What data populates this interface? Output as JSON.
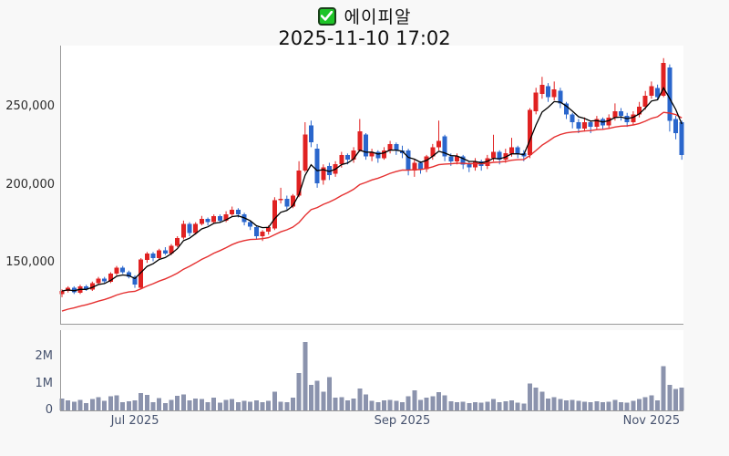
{
  "header": {
    "checkbox_icon": "checkbox-checked",
    "stock_name": "에이피알",
    "timestamp": "2025-11-10 17:02"
  },
  "colors": {
    "background": "#f8f8f8",
    "plot_background": "#ffffff",
    "axis_line": "#9a9a9a",
    "up_candle": "#e02222",
    "down_candle": "#2a66cc",
    "ma_short_line": "#000000",
    "ma_long_line": "#e53030",
    "volume_bar": "#8b93ad",
    "price_label": "#2b2b2b",
    "date_label": "#47536f",
    "checkbox_green": "#1ec427"
  },
  "chart_data": {
    "type": "candlestick_with_volume",
    "title": "에이피알",
    "subtitle": "2025-11-10 17:02",
    "legend_position": "none",
    "grid": false,
    "price_axis": {
      "range": [
        111000,
        289000
      ],
      "ticks": [
        {
          "value": 150000,
          "label": "150,000"
        },
        {
          "value": 200000,
          "label": "200,000"
        },
        {
          "value": 250000,
          "label": "250,000"
        }
      ]
    },
    "volume_axis": {
      "range": [
        0,
        3000000
      ],
      "ticks": [
        {
          "value": 0,
          "label": "0"
        },
        {
          "value": 1000000,
          "label": "1M"
        },
        {
          "value": 2000000,
          "label": "2M"
        }
      ]
    },
    "x_axis": {
      "ticks": [
        {
          "index": 12,
          "label": "Jul 2025"
        },
        {
          "index": 56,
          "label": "Sep 2025"
        },
        {
          "index": 97,
          "label": "Nov 2025"
        }
      ]
    },
    "moving_averages": {
      "short": {
        "type": "ema",
        "alpha": 0.32,
        "seed": null
      },
      "long": {
        "type": "ema",
        "alpha": 0.08,
        "seed": 118000
      }
    },
    "candles_format": [
      "open",
      "high",
      "low",
      "close",
      "volume"
    ],
    "candles": [
      [
        130000,
        133000,
        128000,
        132000,
        450000
      ],
      [
        132000,
        135000,
        131000,
        134000,
        380000
      ],
      [
        134000,
        135000,
        130000,
        131000,
        320000
      ],
      [
        131000,
        136000,
        130000,
        135000,
        400000
      ],
      [
        135000,
        136000,
        132000,
        133000,
        280000
      ],
      [
        133000,
        138000,
        132000,
        137000,
        420000
      ],
      [
        137000,
        141000,
        136000,
        140000,
        500000
      ],
      [
        140000,
        141000,
        137000,
        138000,
        350000
      ],
      [
        138000,
        144000,
        137000,
        143000,
        520000
      ],
      [
        143000,
        148000,
        142000,
        147000,
        560000
      ],
      [
        147000,
        148000,
        143000,
        144000,
        300000
      ],
      [
        144000,
        145000,
        140000,
        141000,
        340000
      ],
      [
        141000,
        142000,
        134000,
        136000,
        380000
      ],
      [
        134000,
        153000,
        133000,
        152000,
        640000
      ],
      [
        152000,
        157000,
        150000,
        156000,
        580000
      ],
      [
        156000,
        157000,
        151000,
        153000,
        300000
      ],
      [
        153000,
        159000,
        152000,
        158000,
        460000
      ],
      [
        158000,
        160000,
        155000,
        156000,
        280000
      ],
      [
        156000,
        162000,
        155000,
        161000,
        400000
      ],
      [
        161000,
        167000,
        160000,
        166000,
        550000
      ],
      [
        166000,
        177000,
        165000,
        175000,
        600000
      ],
      [
        175000,
        176000,
        167000,
        169000,
        380000
      ],
      [
        169000,
        176000,
        168000,
        175000,
        450000
      ],
      [
        175000,
        180000,
        174000,
        178000,
        420000
      ],
      [
        178000,
        179000,
        174000,
        176000,
        310000
      ],
      [
        176000,
        181000,
        175000,
        180000,
        480000
      ],
      [
        180000,
        181000,
        176000,
        177000,
        290000
      ],
      [
        177000,
        183000,
        176000,
        181000,
        400000
      ],
      [
        181000,
        186000,
        180000,
        184000,
        430000
      ],
      [
        184000,
        185000,
        179000,
        181000,
        300000
      ],
      [
        181000,
        182000,
        174000,
        176000,
        350000
      ],
      [
        176000,
        177000,
        171000,
        173000,
        330000
      ],
      [
        173000,
        174000,
        165000,
        167000,
        380000
      ],
      [
        167000,
        171000,
        164000,
        170000,
        300000
      ],
      [
        170000,
        174000,
        168000,
        173000,
        360000
      ],
      [
        172000,
        192000,
        171000,
        190000,
        700000
      ],
      [
        190000,
        198000,
        188000,
        191000,
        320000
      ],
      [
        191000,
        193000,
        184000,
        186000,
        300000
      ],
      [
        186000,
        194000,
        185000,
        193000,
        480000
      ],
      [
        193000,
        215000,
        192000,
        209000,
        1400000
      ],
      [
        209000,
        240000,
        208000,
        232000,
        2550000
      ],
      [
        238000,
        241000,
        224000,
        227000,
        950000
      ],
      [
        223000,
        226000,
        198000,
        201000,
        1100000
      ],
      [
        203000,
        213000,
        200000,
        211000,
        700000
      ],
      [
        212000,
        214000,
        203000,
        206000,
        1250000
      ],
      [
        207000,
        215000,
        205000,
        213000,
        480000
      ],
      [
        213000,
        221000,
        211000,
        219000,
        500000
      ],
      [
        219000,
        220000,
        213000,
        216000,
        380000
      ],
      [
        216000,
        224000,
        214000,
        222000,
        450000
      ],
      [
        222000,
        242000,
        221000,
        234000,
        820000
      ],
      [
        232000,
        233000,
        216000,
        218000,
        600000
      ],
      [
        218000,
        223000,
        215000,
        221000,
        350000
      ],
      [
        221000,
        222000,
        214000,
        217000,
        300000
      ],
      [
        217000,
        224000,
        216000,
        222000,
        380000
      ],
      [
        222000,
        228000,
        220000,
        226000,
        400000
      ],
      [
        226000,
        227000,
        219000,
        222000,
        350000
      ],
      [
        222000,
        225000,
        217000,
        220000,
        300000
      ],
      [
        222000,
        223000,
        206000,
        209000,
        520000
      ],
      [
        209000,
        216000,
        205000,
        214000,
        750000
      ],
      [
        214000,
        215000,
        207000,
        210000,
        400000
      ],
      [
        210000,
        219000,
        208000,
        218000,
        480000
      ],
      [
        218000,
        226000,
        216000,
        224000,
        520000
      ],
      [
        224000,
        241000,
        222000,
        228000,
        680000
      ],
      [
        231000,
        232000,
        215000,
        218000,
        560000
      ],
      [
        218000,
        220000,
        212000,
        215000,
        340000
      ],
      [
        215000,
        220000,
        213000,
        218000,
        300000
      ],
      [
        218000,
        219000,
        210000,
        213000,
        320000
      ],
      [
        213000,
        215000,
        208000,
        211000,
        280000
      ],
      [
        211000,
        217000,
        209000,
        215000,
        310000
      ],
      [
        215000,
        216000,
        209000,
        212000,
        290000
      ],
      [
        212000,
        219000,
        210000,
        217000,
        330000
      ],
      [
        217000,
        232000,
        215000,
        221000,
        420000
      ],
      [
        221000,
        222000,
        213000,
        216000,
        300000
      ],
      [
        216000,
        223000,
        214000,
        220000,
        340000
      ],
      [
        220000,
        230000,
        218000,
        224000,
        380000
      ],
      [
        224000,
        225000,
        217000,
        220000,
        290000
      ],
      [
        220000,
        222000,
        215000,
        218000,
        260000
      ],
      [
        219000,
        249000,
        217000,
        248000,
        1000000
      ],
      [
        247000,
        262000,
        245000,
        259000,
        850000
      ],
      [
        258000,
        269000,
        255000,
        264000,
        700000
      ],
      [
        263000,
        265000,
        253000,
        256000,
        450000
      ],
      [
        256000,
        266000,
        254000,
        261000,
        500000
      ],
      [
        260000,
        262000,
        249000,
        252000,
        420000
      ],
      [
        252000,
        253000,
        242000,
        245000,
        380000
      ],
      [
        245000,
        246000,
        236000,
        240000,
        400000
      ],
      [
        240000,
        242000,
        233000,
        236000,
        360000
      ],
      [
        236000,
        243000,
        234000,
        240000,
        320000
      ],
      [
        240000,
        241000,
        233000,
        237000,
        300000
      ],
      [
        237000,
        244000,
        235000,
        242000,
        340000
      ],
      [
        242000,
        243000,
        235000,
        238000,
        310000
      ],
      [
        238000,
        245000,
        236000,
        243000,
        330000
      ],
      [
        243000,
        252000,
        241000,
        247000,
        400000
      ],
      [
        247000,
        249000,
        241000,
        244000,
        300000
      ],
      [
        244000,
        246000,
        237000,
        240000,
        290000
      ],
      [
        240000,
        247000,
        238000,
        245000,
        350000
      ],
      [
        245000,
        253000,
        243000,
        250000,
        420000
      ],
      [
        250000,
        260000,
        248000,
        257000,
        500000
      ],
      [
        257000,
        266000,
        255000,
        263000,
        560000
      ],
      [
        262000,
        264000,
        254000,
        256000,
        380000
      ],
      [
        257000,
        281000,
        256000,
        278000,
        1650000
      ],
      [
        275000,
        277000,
        234000,
        241000,
        950000
      ],
      [
        242000,
        244000,
        229000,
        233000,
        800000
      ],
      [
        240000,
        241000,
        216000,
        219000,
        850000
      ]
    ]
  }
}
